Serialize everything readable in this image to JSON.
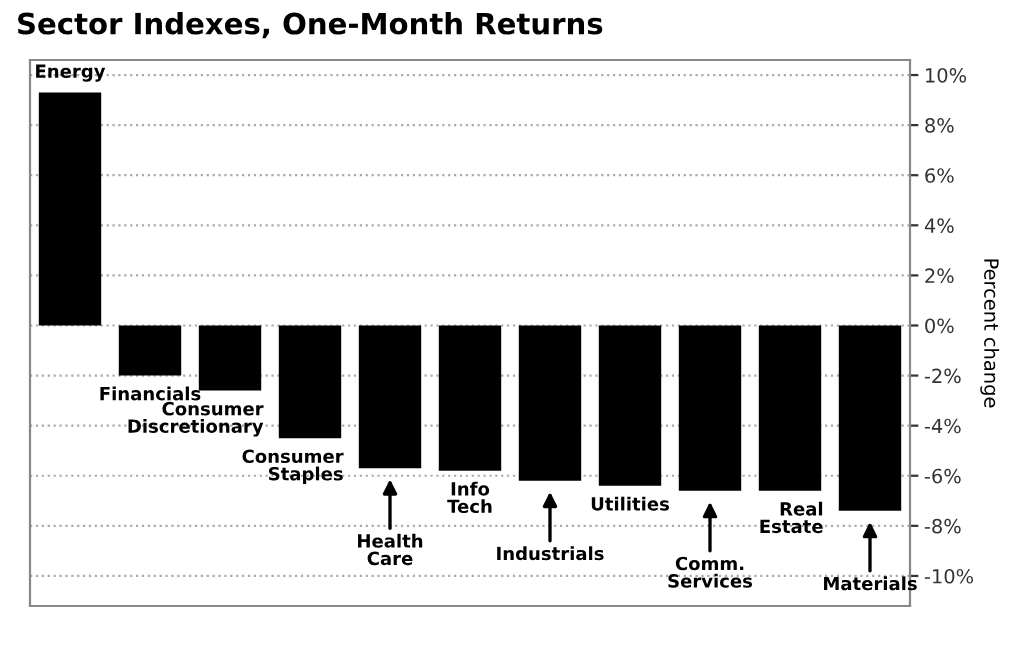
{
  "chart_data": {
    "type": "bar",
    "title": "Sector Indexes, One-Month Returns",
    "ylabel": "Percent change",
    "categories": [
      "Energy",
      "Financials",
      "Consumer\nDiscretionary",
      "Consumer\nStaples",
      "Health\nCare",
      "Info\nTech",
      "Industrials",
      "Utilities",
      "Comm.\nServices",
      "Real\nEstate",
      "Materials"
    ],
    "values": [
      9.3,
      -2.0,
      -2.6,
      -4.5,
      -5.7,
      -5.8,
      -6.2,
      -6.4,
      -6.6,
      -6.6,
      -7.4
    ],
    "color": "#000000",
    "ylim": [
      -11.2,
      10.6
    ],
    "yticks": [
      {
        "value": -10,
        "label": "-10%"
      },
      {
        "value": -8,
        "label": "-8%"
      },
      {
        "value": -6,
        "label": "-6%"
      },
      {
        "value": -4,
        "label": "-4%"
      },
      {
        "value": -2,
        "label": "-2%"
      },
      {
        "value": 0,
        "label": "0%"
      },
      {
        "value": 2,
        "label": "2%"
      },
      {
        "value": 4,
        "label": "4%"
      },
      {
        "value": 6,
        "label": "6%"
      },
      {
        "value": 8,
        "label": "8%"
      },
      {
        "value": 10,
        "label": "10%"
      }
    ],
    "grid": "y"
  }
}
